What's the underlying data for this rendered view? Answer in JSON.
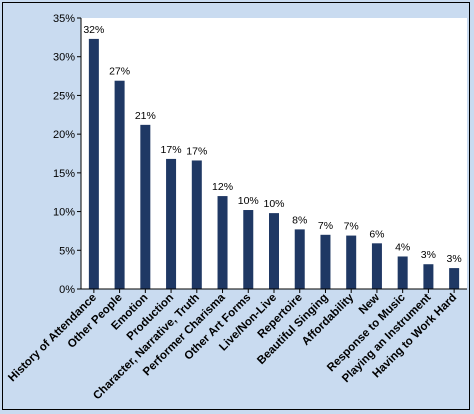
{
  "chart_data": {
    "type": "bar",
    "title": "",
    "xlabel": "",
    "ylabel": "",
    "ylim": [
      0,
      35
    ],
    "yticks": [
      0,
      5,
      10,
      15,
      20,
      25,
      30,
      35
    ],
    "ytick_suffix": "%",
    "grid": false,
    "legend": "none",
    "categories": [
      "History of Attendance",
      "Other People",
      "Emotion",
      "Production",
      "Character, Narrative, Truth",
      "Performer Charisma",
      "Other Art Forms",
      "Live/Non-Live",
      "Repertoire",
      "Beautiful Singing",
      "Affordability",
      "New",
      "Response to Music",
      "Playing an Instrument",
      "Having to Work Hard"
    ],
    "values": [
      32.3,
      26.9,
      21.2,
      16.8,
      16.6,
      12.0,
      10.2,
      9.8,
      7.7,
      7.0,
      6.9,
      5.9,
      4.2,
      3.2,
      2.7
    ],
    "data_labels": [
      "32%",
      "27%",
      "21%",
      "17%",
      "17%",
      "12%",
      "10%",
      "10%",
      "8%",
      "7%",
      "7%",
      "6%",
      "4%",
      "3%",
      "3%"
    ],
    "colors": {
      "bar": "#1f3864",
      "background": "#c9dbf0",
      "plot_area": "#ffffff",
      "axis": "#000000"
    }
  }
}
